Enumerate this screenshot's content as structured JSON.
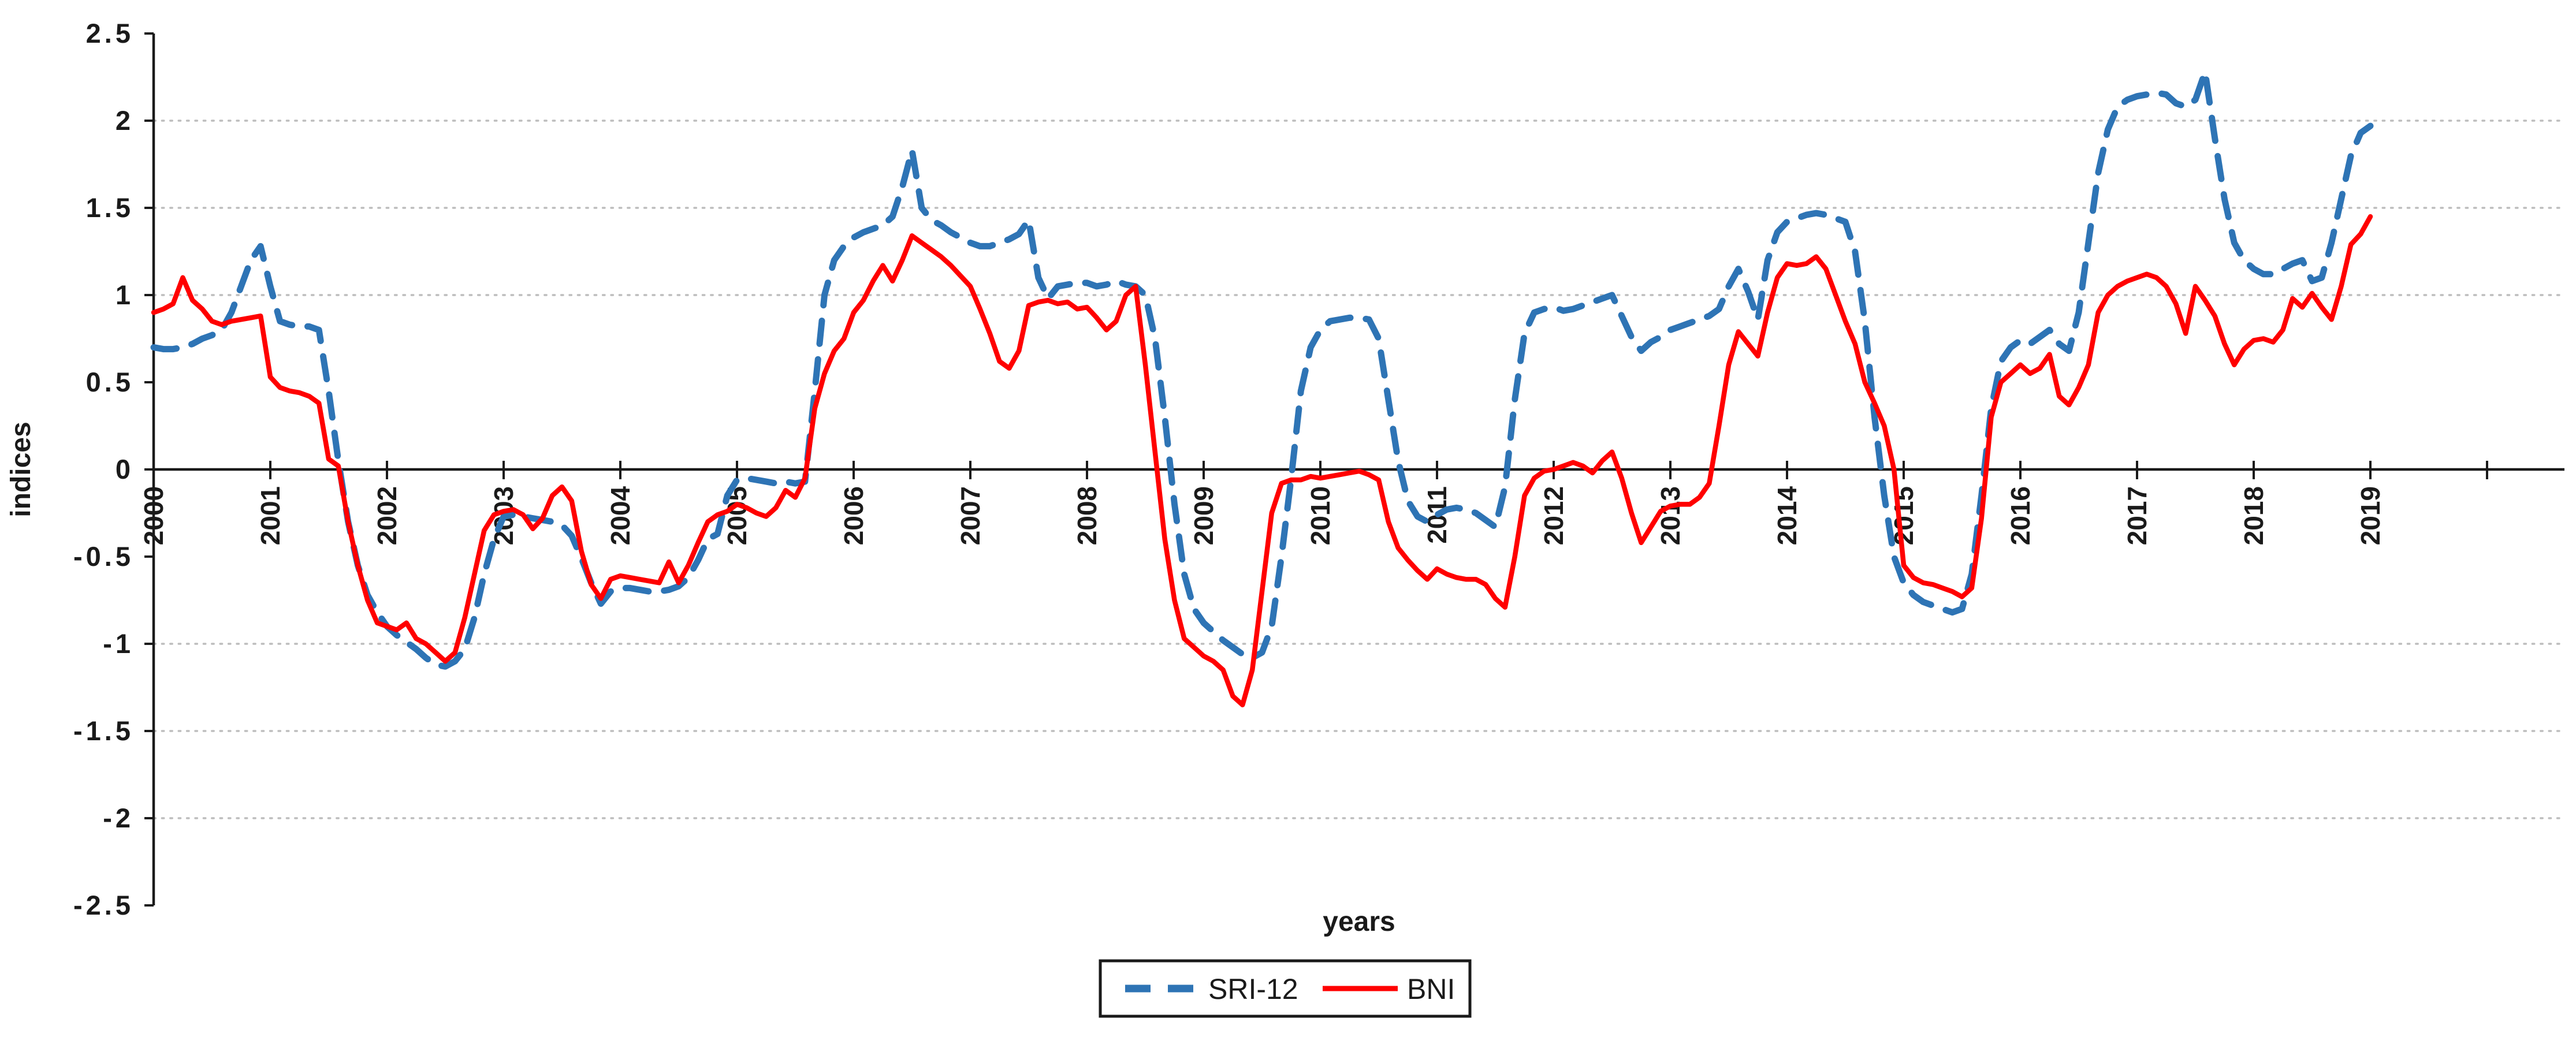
{
  "chart_data": {
    "type": "line",
    "title": "",
    "xlabel": "years",
    "ylabel": "indices",
    "ylim": [
      -2.5,
      2.5
    ],
    "ytick_step": 0.5,
    "grid": "dotted horizontal lines at -2, -1.5, -1, 1, 1.5, 2",
    "grid_values": [
      2.0,
      1.5,
      1.0,
      -1.0,
      -1.5,
      -2.0
    ],
    "y_ticks": [
      {
        "v": 2.5,
        "label": "2.5"
      },
      {
        "v": 2.0,
        "label": "2"
      },
      {
        "v": 1.5,
        "label": "1.5"
      },
      {
        "v": 1.0,
        "label": "1"
      },
      {
        "v": 0.5,
        "label": "0.5"
      },
      {
        "v": 0.0,
        "label": "0"
      },
      {
        "v": -0.5,
        "label": "-0.5"
      },
      {
        "v": -1.0,
        "label": "-1"
      },
      {
        "v": -1.5,
        "label": "-1.5"
      },
      {
        "v": -2.0,
        "label": "-2"
      },
      {
        "v": -2.5,
        "label": "-2.5"
      }
    ],
    "x_tick_labels": [
      "2000",
      "2001",
      "2002",
      "2003",
      "2004",
      "2005",
      "2006",
      "2007",
      "2008",
      "2009",
      "2010",
      "2011",
      "2012",
      "2013",
      "2014",
      "2015",
      "2016",
      "2017",
      "2018",
      "2019"
    ],
    "x_axis_extra_unlabeled_ticks": 1,
    "x_start_year": 2000,
    "points_per_year": 12,
    "legend_position": "bottom-center, boxed",
    "series": [
      {
        "name": "SRI-12",
        "color": "#2E74B5",
        "style": "dashed",
        "values": [
          0.7,
          0.69,
          0.69,
          0.7,
          0.72,
          0.75,
          0.77,
          0.8,
          0.9,
          1.05,
          1.2,
          1.28,
          1.05,
          0.85,
          0.83,
          0.82,
          0.82,
          0.8,
          0.45,
          0.05,
          -0.3,
          -0.55,
          -0.72,
          -0.82,
          -0.9,
          -0.95,
          -0.99,
          -1.03,
          -1.08,
          -1.12,
          -1.13,
          -1.1,
          -1.03,
          -0.85,
          -0.6,
          -0.4,
          -0.27,
          -0.26,
          -0.27,
          -0.28,
          -0.29,
          -0.3,
          -0.32,
          -0.38,
          -0.51,
          -0.65,
          -0.77,
          -0.7,
          -0.68,
          -0.68,
          -0.69,
          -0.7,
          -0.7,
          -0.69,
          -0.67,
          -0.62,
          -0.52,
          -0.4,
          -0.37,
          -0.15,
          -0.06,
          -0.05,
          -0.06,
          -0.07,
          -0.08,
          -0.07,
          -0.08,
          -0.07,
          0.45,
          1.0,
          1.2,
          1.28,
          1.33,
          1.36,
          1.38,
          1.4,
          1.45,
          1.62,
          1.83,
          1.5,
          1.43,
          1.4,
          1.36,
          1.33,
          1.3,
          1.28,
          1.28,
          1.3,
          1.32,
          1.35,
          1.43,
          1.1,
          0.98,
          1.05,
          1.06,
          1.07,
          1.07,
          1.05,
          1.06,
          1.08,
          1.06,
          1.05,
          1.0,
          0.75,
          0.3,
          -0.2,
          -0.6,
          -0.8,
          -0.88,
          -0.93,
          -0.98,
          -1.02,
          -1.06,
          -1.08,
          -1.05,
          -0.9,
          -0.5,
          -0.05,
          0.45,
          0.7,
          0.8,
          0.85,
          0.86,
          0.87,
          0.87,
          0.86,
          0.75,
          0.4,
          0.05,
          -0.18,
          -0.27,
          -0.3,
          -0.26,
          -0.23,
          -0.22,
          -0.23,
          -0.25,
          -0.29,
          -0.33,
          -0.1,
          0.4,
          0.78,
          0.9,
          0.92,
          0.93,
          0.91,
          0.92,
          0.94,
          0.96,
          0.98,
          1.0,
          0.88,
          0.76,
          0.68,
          0.73,
          0.76,
          0.8,
          0.82,
          0.84,
          0.86,
          0.88,
          0.92,
          1.05,
          1.15,
          1.02,
          0.86,
          1.2,
          1.36,
          1.42,
          1.44,
          1.46,
          1.47,
          1.46,
          1.44,
          1.42,
          1.25,
          0.85,
          0.3,
          -0.15,
          -0.5,
          -0.65,
          -0.72,
          -0.76,
          -0.78,
          -0.8,
          -0.82,
          -0.8,
          -0.6,
          -0.15,
          0.35,
          0.62,
          0.7,
          0.74,
          0.72,
          0.76,
          0.8,
          0.72,
          0.68,
          0.9,
          1.3,
          1.7,
          1.95,
          2.08,
          2.12,
          2.14,
          2.15,
          2.16,
          2.15,
          2.1,
          2.08,
          2.12,
          2.28,
          1.9,
          1.55,
          1.3,
          1.2,
          1.15,
          1.12,
          1.12,
          1.15,
          1.18,
          1.2,
          1.08,
          1.1,
          1.3,
          1.55,
          1.8,
          1.93,
          1.97
        ]
      },
      {
        "name": "BNI",
        "color": "#FF0000",
        "style": "solid",
        "values": [
          0.9,
          0.92,
          0.95,
          1.1,
          0.97,
          0.92,
          0.85,
          0.83,
          0.85,
          0.86,
          0.87,
          0.88,
          0.53,
          0.47,
          0.45,
          0.44,
          0.42,
          0.38,
          0.06,
          0.02,
          -0.3,
          -0.55,
          -0.75,
          -0.88,
          -0.9,
          -0.92,
          -0.88,
          -0.97,
          -1.0,
          -1.05,
          -1.1,
          -1.05,
          -0.85,
          -0.6,
          -0.35,
          -0.26,
          -0.24,
          -0.23,
          -0.26,
          -0.34,
          -0.28,
          -0.15,
          -0.1,
          -0.18,
          -0.47,
          -0.66,
          -0.74,
          -0.63,
          -0.61,
          -0.62,
          -0.63,
          -0.64,
          -0.65,
          -0.53,
          -0.65,
          -0.55,
          -0.42,
          -0.3,
          -0.26,
          -0.24,
          -0.2,
          -0.22,
          -0.25,
          -0.27,
          -0.22,
          -0.12,
          -0.16,
          -0.05,
          0.35,
          0.55,
          0.68,
          0.75,
          0.9,
          0.97,
          1.08,
          1.17,
          1.08,
          1.2,
          1.34,
          1.3,
          1.26,
          1.22,
          1.17,
          1.11,
          1.05,
          0.92,
          0.78,
          0.62,
          0.58,
          0.68,
          0.94,
          0.96,
          0.97,
          0.95,
          0.96,
          0.92,
          0.93,
          0.87,
          0.8,
          0.85,
          1.0,
          1.05,
          0.6,
          0.1,
          -0.4,
          -0.75,
          -0.97,
          -1.02,
          -1.07,
          -1.1,
          -1.15,
          -1.3,
          -1.35,
          -1.15,
          -0.7,
          -0.25,
          -0.08,
          -0.06,
          -0.06,
          -0.04,
          -0.05,
          -0.04,
          -0.03,
          -0.02,
          -0.01,
          -0.03,
          -0.06,
          -0.3,
          -0.45,
          -0.52,
          -0.58,
          -0.63,
          -0.57,
          -0.6,
          -0.62,
          -0.63,
          -0.63,
          -0.66,
          -0.74,
          -0.79,
          -0.5,
          -0.15,
          -0.05,
          -0.01,
          0.0,
          0.02,
          0.04,
          0.02,
          -0.02,
          0.05,
          0.1,
          -0.05,
          -0.25,
          -0.42,
          -0.33,
          -0.24,
          -0.21,
          -0.2,
          -0.2,
          -0.16,
          -0.08,
          0.25,
          0.6,
          0.79,
          0.72,
          0.65,
          0.9,
          1.1,
          1.18,
          1.17,
          1.18,
          1.22,
          1.15,
          1.0,
          0.85,
          0.72,
          0.5,
          0.38,
          0.25,
          0.0,
          -0.55,
          -0.62,
          -0.65,
          -0.66,
          -0.68,
          -0.7,
          -0.73,
          -0.68,
          -0.28,
          0.3,
          0.5,
          0.55,
          0.6,
          0.55,
          0.58,
          0.66,
          0.42,
          0.37,
          0.47,
          0.6,
          0.9,
          1.0,
          1.05,
          1.08,
          1.1,
          1.12,
          1.1,
          1.05,
          0.95,
          0.78,
          1.05,
          0.97,
          0.88,
          0.72,
          0.6,
          0.69,
          0.74,
          0.75,
          0.73,
          0.8,
          0.98,
          0.93,
          1.01,
          0.93,
          0.86,
          1.05,
          1.29,
          1.35,
          1.45
        ]
      }
    ],
    "colors": {
      "sri12_blue": "#2E74B5",
      "bni_red": "#FF0000",
      "gridline_gray": "#BDBDBD",
      "axis_black": "#1A1A1A"
    },
    "legend": [
      {
        "label": "SRI-12",
        "sample": "blue dashed line"
      },
      {
        "label": "BNI",
        "sample": "red solid line"
      }
    ]
  },
  "layout_note": "plot origin axis y=0 crosses chart; x ticks every year crossing axis; year labels rotated 90deg reading bottom-to-top"
}
